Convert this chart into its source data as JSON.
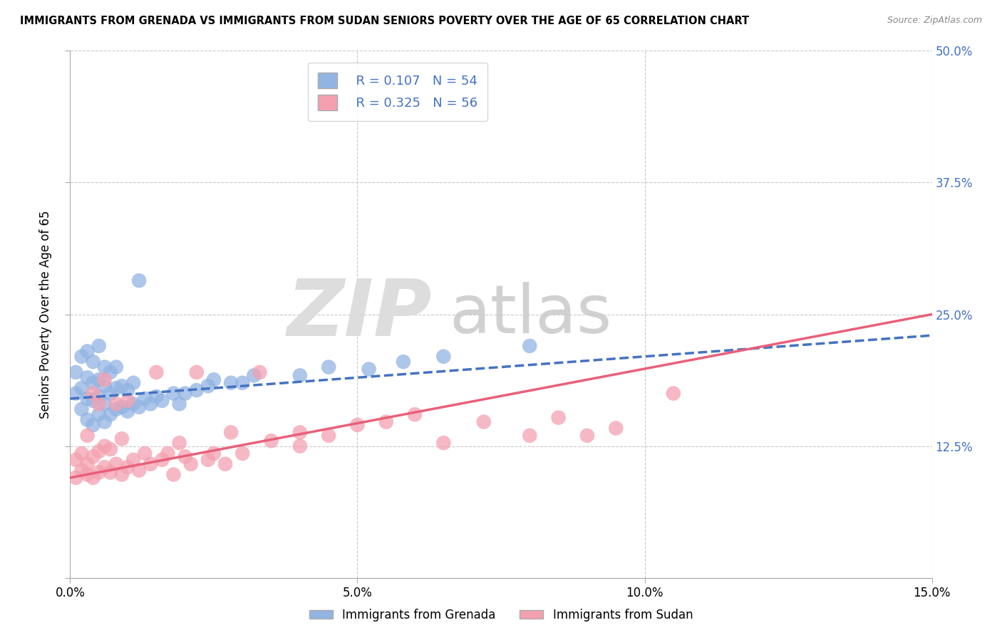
{
  "title": "IMMIGRANTS FROM GRENADA VS IMMIGRANTS FROM SUDAN SENIORS POVERTY OVER THE AGE OF 65 CORRELATION CHART",
  "source": "Source: ZipAtlas.com",
  "ylabel": "Seniors Poverty Over the Age of 65",
  "xlim": [
    0.0,
    0.15
  ],
  "ylim": [
    0.0,
    0.5
  ],
  "xticks": [
    0.0,
    0.05,
    0.1,
    0.15
  ],
  "xticklabels": [
    "0.0%",
    "",
    "5.0%",
    "",
    "10.0%",
    "",
    "15.0%"
  ],
  "yticks": [
    0.0,
    0.125,
    0.25,
    0.375,
    0.5
  ],
  "right_yticklabels": [
    "",
    "12.5%",
    "25.0%",
    "37.5%",
    "50.0%"
  ],
  "grenada_R": 0.107,
  "grenada_N": 54,
  "sudan_R": 0.325,
  "sudan_N": 56,
  "grenada_color": "#92b4e3",
  "sudan_color": "#f4a0b0",
  "grenada_line_color": "#4472c4",
  "sudan_line_color": "#e8607a",
  "background_color": "#ffffff",
  "grid_color": "#c8c8c8",
  "legend_labels": [
    "Immigrants from Grenada",
    "Immigrants from Sudan"
  ],
  "grenada_x": [
    0.001,
    0.001,
    0.002,
    0.002,
    0.002,
    0.003,
    0.003,
    0.003,
    0.003,
    0.004,
    0.004,
    0.004,
    0.004,
    0.005,
    0.005,
    0.005,
    0.005,
    0.006,
    0.006,
    0.006,
    0.006,
    0.007,
    0.007,
    0.007,
    0.008,
    0.008,
    0.008,
    0.009,
    0.009,
    0.01,
    0.01,
    0.011,
    0.011,
    0.012,
    0.012,
    0.013,
    0.014,
    0.015,
    0.016,
    0.018,
    0.019,
    0.02,
    0.022,
    0.024,
    0.025,
    0.028,
    0.03,
    0.032,
    0.04,
    0.045,
    0.052,
    0.058,
    0.065,
    0.08
  ],
  "grenada_y": [
    0.175,
    0.195,
    0.16,
    0.18,
    0.21,
    0.15,
    0.17,
    0.19,
    0.215,
    0.145,
    0.168,
    0.185,
    0.205,
    0.155,
    0.172,
    0.188,
    0.22,
    0.148,
    0.165,
    0.182,
    0.2,
    0.155,
    0.175,
    0.195,
    0.16,
    0.18,
    0.2,
    0.162,
    0.182,
    0.158,
    0.178,
    0.165,
    0.185,
    0.162,
    0.282,
    0.17,
    0.165,
    0.172,
    0.168,
    0.175,
    0.165,
    0.175,
    0.178,
    0.182,
    0.188,
    0.185,
    0.185,
    0.192,
    0.192,
    0.2,
    0.198,
    0.205,
    0.21,
    0.22
  ],
  "sudan_x": [
    0.001,
    0.001,
    0.002,
    0.002,
    0.003,
    0.003,
    0.003,
    0.004,
    0.004,
    0.004,
    0.005,
    0.005,
    0.005,
    0.006,
    0.006,
    0.006,
    0.007,
    0.007,
    0.008,
    0.008,
    0.009,
    0.009,
    0.01,
    0.01,
    0.011,
    0.012,
    0.013,
    0.014,
    0.015,
    0.016,
    0.017,
    0.018,
    0.019,
    0.02,
    0.021,
    0.022,
    0.024,
    0.025,
    0.027,
    0.028,
    0.03,
    0.033,
    0.035,
    0.04,
    0.04,
    0.045,
    0.05,
    0.055,
    0.06,
    0.065,
    0.072,
    0.08,
    0.085,
    0.09,
    0.095,
    0.105
  ],
  "sudan_y": [
    0.095,
    0.112,
    0.102,
    0.118,
    0.098,
    0.108,
    0.135,
    0.095,
    0.115,
    0.175,
    0.1,
    0.12,
    0.165,
    0.105,
    0.125,
    0.188,
    0.1,
    0.122,
    0.108,
    0.165,
    0.098,
    0.132,
    0.105,
    0.168,
    0.112,
    0.102,
    0.118,
    0.108,
    0.195,
    0.112,
    0.118,
    0.098,
    0.128,
    0.115,
    0.108,
    0.195,
    0.112,
    0.118,
    0.108,
    0.138,
    0.118,
    0.195,
    0.13,
    0.138,
    0.125,
    0.135,
    0.145,
    0.148,
    0.155,
    0.128,
    0.148,
    0.135,
    0.152,
    0.135,
    0.142,
    0.175
  ]
}
